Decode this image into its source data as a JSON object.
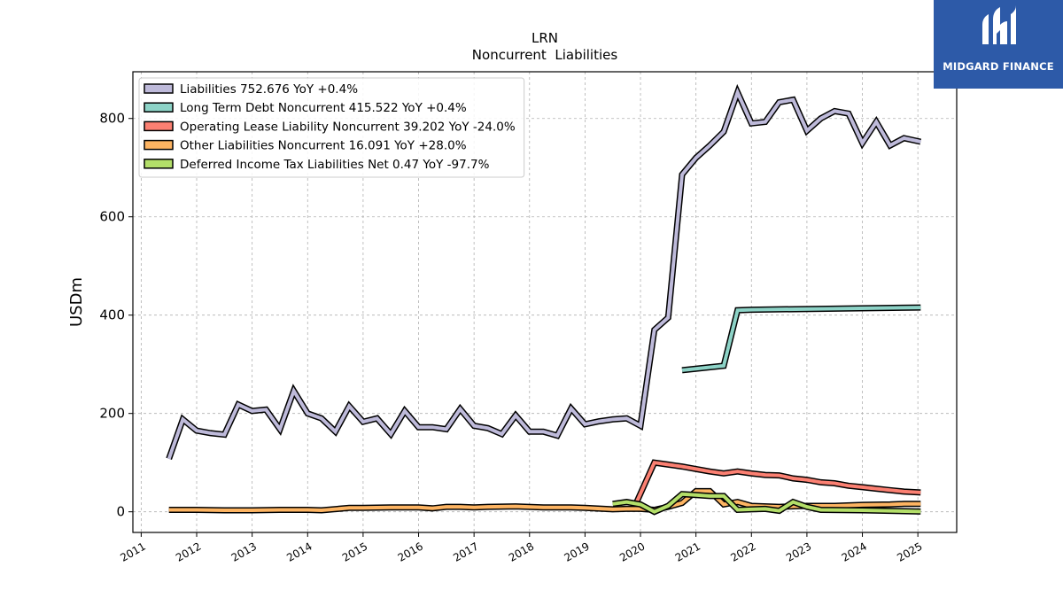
{
  "brand": {
    "name": "MIDGARD FINANCE",
    "color": "#2d5aa8"
  },
  "chart_data": {
    "type": "line",
    "title": "LRN",
    "subtitle": "Noncurrent  Liabilities",
    "ylabel": "USDm",
    "xlabel": "",
    "xlim": [
      2010.85,
      2025.7
    ],
    "ylim": [
      -42,
      895
    ],
    "yticks": [
      0,
      200,
      400,
      600,
      800
    ],
    "xticks": [
      2011,
      2012,
      2013,
      2014,
      2015,
      2016,
      2017,
      2018,
      2019,
      2020,
      2021,
      2022,
      2023,
      2024,
      2025
    ],
    "grid": true,
    "legend_position": "top-left",
    "series": [
      {
        "name": "Liabilities  752.676 YoY +0.4%",
        "color": "#bebada",
        "points": [
          [
            2011.5,
            108
          ],
          [
            2011.75,
            188
          ],
          [
            2012.0,
            165
          ],
          [
            2012.25,
            160
          ],
          [
            2012.5,
            157
          ],
          [
            2012.75,
            218
          ],
          [
            2013.0,
            205
          ],
          [
            2013.25,
            208
          ],
          [
            2013.5,
            168
          ],
          [
            2013.75,
            246
          ],
          [
            2014.0,
            200
          ],
          [
            2014.25,
            190
          ],
          [
            2014.5,
            163
          ],
          [
            2014.75,
            215
          ],
          [
            2015.0,
            183
          ],
          [
            2015.25,
            190
          ],
          [
            2015.5,
            158
          ],
          [
            2015.75,
            205
          ],
          [
            2016.0,
            172
          ],
          [
            2016.25,
            172
          ],
          [
            2016.5,
            168
          ],
          [
            2016.75,
            209
          ],
          [
            2017.0,
            175
          ],
          [
            2017.25,
            170
          ],
          [
            2017.5,
            158
          ],
          [
            2017.75,
            196
          ],
          [
            2018.0,
            163
          ],
          [
            2018.25,
            163
          ],
          [
            2018.5,
            155
          ],
          [
            2018.75,
            210
          ],
          [
            2019.0,
            178
          ],
          [
            2019.25,
            184
          ],
          [
            2019.5,
            188
          ],
          [
            2019.75,
            190
          ],
          [
            2020.0,
            175
          ],
          [
            2020.25,
            370
          ],
          [
            2020.5,
            395
          ],
          [
            2020.75,
            686
          ],
          [
            2021.0,
            720
          ],
          [
            2021.25,
            745
          ],
          [
            2021.5,
            773
          ],
          [
            2021.75,
            853
          ],
          [
            2022.0,
            790
          ],
          [
            2022.25,
            793
          ],
          [
            2022.5,
            833
          ],
          [
            2022.75,
            838
          ],
          [
            2023.0,
            775
          ],
          [
            2023.25,
            800
          ],
          [
            2023.5,
            815
          ],
          [
            2023.75,
            810
          ],
          [
            2024.0,
            750
          ],
          [
            2024.25,
            793
          ],
          [
            2024.5,
            745
          ],
          [
            2024.75,
            760
          ],
          [
            2025.05,
            752.676
          ]
        ]
      },
      {
        "name": "Long Term Debt Noncurrent  415.522 YoY +0.4%",
        "color": "#8dd3c7",
        "points": [
          [
            2020.75,
            288
          ],
          [
            2021.5,
            297
          ],
          [
            2021.75,
            410
          ],
          [
            2022.0,
            411
          ],
          [
            2025.05,
            415.522
          ]
        ]
      },
      {
        "name": "Operating Lease Liability Noncurrent  39.202 YoY -24.0%",
        "color": "#fb8072",
        "points": [
          [
            2019.9,
            12
          ],
          [
            2020.25,
            100
          ],
          [
            2020.5,
            96
          ],
          [
            2020.75,
            92
          ],
          [
            2021.0,
            87
          ],
          [
            2021.25,
            82
          ],
          [
            2021.5,
            78
          ],
          [
            2021.75,
            82
          ],
          [
            2022.0,
            78
          ],
          [
            2022.25,
            75
          ],
          [
            2022.5,
            74
          ],
          [
            2022.75,
            68
          ],
          [
            2023.0,
            65
          ],
          [
            2023.25,
            60
          ],
          [
            2023.5,
            58
          ],
          [
            2023.75,
            53
          ],
          [
            2024.0,
            50
          ],
          [
            2024.25,
            47
          ],
          [
            2024.5,
            44
          ],
          [
            2024.75,
            41
          ],
          [
            2025.05,
            39.202
          ]
        ]
      },
      {
        "name": "Other Liabilities Noncurrent  16.091 YoY +28.0%",
        "color": "#fdb462",
        "points": [
          [
            2011.5,
            4
          ],
          [
            2012.0,
            4
          ],
          [
            2012.5,
            3
          ],
          [
            2013.0,
            3
          ],
          [
            2013.5,
            4
          ],
          [
            2014.0,
            4
          ],
          [
            2014.25,
            3
          ],
          [
            2014.75,
            8
          ],
          [
            2015.0,
            8
          ],
          [
            2015.5,
            9
          ],
          [
            2016.0,
            9
          ],
          [
            2016.25,
            7
          ],
          [
            2016.5,
            10
          ],
          [
            2016.75,
            10
          ],
          [
            2017.0,
            9
          ],
          [
            2017.25,
            10
          ],
          [
            2017.75,
            11
          ],
          [
            2018.25,
            9
          ],
          [
            2018.75,
            9
          ],
          [
            2019.0,
            8
          ],
          [
            2019.5,
            5
          ],
          [
            2019.75,
            6
          ],
          [
            2020.0,
            6
          ],
          [
            2020.25,
            4
          ],
          [
            2020.5,
            10
          ],
          [
            2020.75,
            18
          ],
          [
            2021.0,
            42
          ],
          [
            2021.25,
            42
          ],
          [
            2021.5,
            15
          ],
          [
            2021.75,
            20
          ],
          [
            2022.0,
            12
          ],
          [
            2022.5,
            10
          ],
          [
            2023.0,
            12
          ],
          [
            2023.5,
            12
          ],
          [
            2024.0,
            14
          ],
          [
            2024.5,
            15
          ],
          [
            2024.75,
            16
          ],
          [
            2025.05,
            16.091
          ]
        ]
      },
      {
        "name": "Deferred Income Tax Liabilities Net  0.47 YoY -97.7%",
        "color": "#b3de69",
        "points": [
          [
            2019.5,
            16
          ],
          [
            2019.75,
            20
          ],
          [
            2020.0,
            15
          ],
          [
            2020.25,
            0
          ],
          [
            2020.5,
            12
          ],
          [
            2020.75,
            36
          ],
          [
            2021.0,
            34
          ],
          [
            2021.25,
            32
          ],
          [
            2021.5,
            32
          ],
          [
            2021.75,
            4
          ],
          [
            2022.0,
            5
          ],
          [
            2022.25,
            6
          ],
          [
            2022.5,
            2
          ],
          [
            2022.75,
            20
          ],
          [
            2023.0,
            10
          ],
          [
            2023.25,
            4
          ],
          [
            2024.0,
            3
          ],
          [
            2024.5,
            2
          ],
          [
            2025.05,
            0.47
          ]
        ]
      }
    ]
  }
}
